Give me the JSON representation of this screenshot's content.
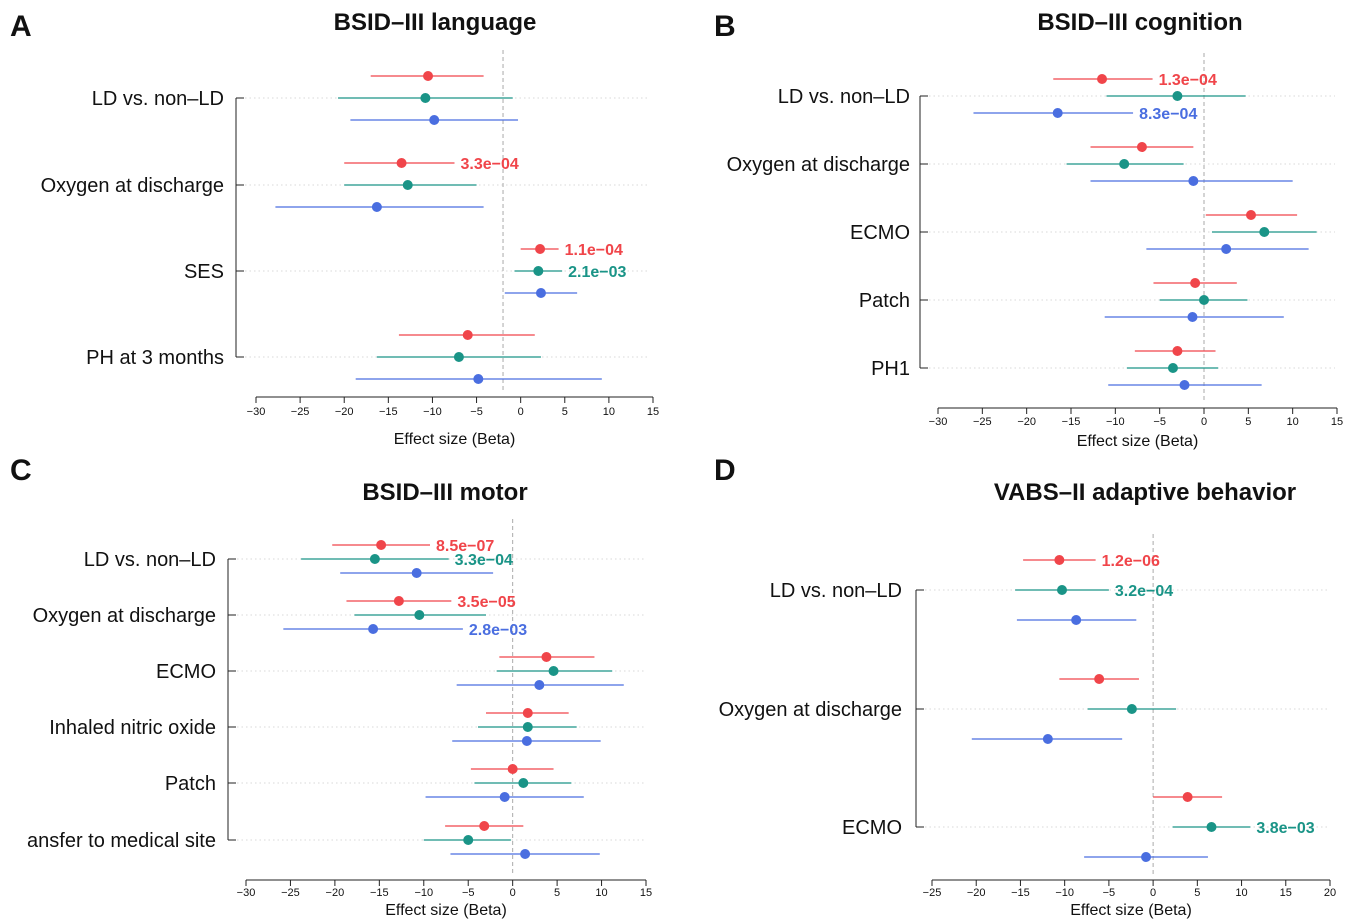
{
  "colors": {
    "s1": "#f0454a",
    "s2": "#1a9487",
    "s3": "#4a6ee0"
  },
  "chart_data": [
    {
      "panel": "A",
      "type": "forest",
      "title": "BSID–III language",
      "xlabel": "Effect size (Beta)",
      "xlim": [
        -30,
        15
      ],
      "xticks": [
        -30,
        -25,
        -20,
        -15,
        -10,
        -5,
        0,
        5,
        10,
        15
      ],
      "reference_line_x": -2,
      "grid": "dotted horizontal",
      "categories": [
        "LD vs. non–LD",
        "Oxygen at discharge",
        "SES",
        "PH at 3 months"
      ],
      "series": [
        {
          "color": "s1",
          "estimate": [
            -10.5,
            -13.5,
            2.2,
            -6.0
          ],
          "ci_low": [
            -17.0,
            -20.0,
            0.0,
            -13.8
          ],
          "ci_high": [
            -4.2,
            -7.5,
            4.3,
            1.6
          ]
        },
        {
          "color": "s2",
          "estimate": [
            -10.8,
            -12.8,
            2.0,
            -7.0
          ],
          "ci_low": [
            -20.7,
            -20.0,
            -0.7,
            -16.3
          ],
          "ci_high": [
            -0.9,
            -5.0,
            4.7,
            2.3
          ]
        },
        {
          "color": "s3",
          "estimate": [
            -9.8,
            -16.3,
            2.3,
            -4.8
          ],
          "ci_low": [
            -19.3,
            -27.8,
            -1.8,
            -18.7
          ],
          "ci_high": [
            -0.3,
            -4.2,
            6.4,
            9.2
          ]
        }
      ],
      "annotations": [
        {
          "text": "3.3e−04",
          "row": 1,
          "series": 0
        },
        {
          "text": "1.1e−04",
          "row": 2,
          "series": 0
        },
        {
          "text": "2.1e−03",
          "row": 2,
          "series": 1
        }
      ]
    },
    {
      "panel": "B",
      "type": "forest",
      "title": "BSID–III cognition",
      "xlabel": "Effect size (Beta)",
      "xlim": [
        -30,
        15
      ],
      "xticks": [
        -30,
        -25,
        -20,
        -15,
        -10,
        -5,
        0,
        5,
        10,
        15
      ],
      "reference_line_x": 0,
      "grid": "dotted horizontal",
      "categories": [
        "LD vs. non–LD",
        "Oxygen at discharge",
        "ECMO",
        "Patch",
        "PH1"
      ],
      "series": [
        {
          "color": "s1",
          "estimate": [
            -11.5,
            -7.0,
            5.3,
            -1.0,
            -3.0
          ],
          "ci_low": [
            -17.0,
            -12.8,
            0.2,
            -5.7,
            -7.8
          ],
          "ci_high": [
            -5.8,
            -1.2,
            10.5,
            3.7,
            1.3
          ]
        },
        {
          "color": "s2",
          "estimate": [
            -3.0,
            -9.0,
            6.8,
            0.0,
            -3.5
          ],
          "ci_low": [
            -11.0,
            -15.5,
            0.9,
            -5.0,
            -8.7
          ],
          "ci_high": [
            4.7,
            -2.3,
            12.7,
            4.9,
            1.6
          ]
        },
        {
          "color": "s3",
          "estimate": [
            -16.5,
            -1.2,
            2.5,
            -1.3,
            -2.2
          ],
          "ci_low": [
            -26.0,
            -12.8,
            -6.5,
            -11.2,
            -10.8
          ],
          "ci_high": [
            -8.0,
            10.0,
            11.8,
            9.0,
            6.5
          ]
        }
      ],
      "annotations": [
        {
          "text": "1.3e−04",
          "row": 0,
          "series": 0
        },
        {
          "text": "8.3e−04",
          "row": 0,
          "series": 2
        }
      ]
    },
    {
      "panel": "C",
      "type": "forest",
      "title": "BSID–III motor",
      "xlabel": "Effect size (Beta)",
      "xlim": [
        -30,
        15
      ],
      "xticks": [
        -30,
        -25,
        -20,
        -15,
        -10,
        -5,
        0,
        5,
        10,
        15
      ],
      "reference_line_x": 0,
      "grid": "dotted horizontal",
      "categories": [
        "LD vs. non–LD",
        "Oxygen at discharge",
        "ECMO",
        "Inhaled nitric oxide",
        "Patch",
        "ansfer to medical site"
      ],
      "series": [
        {
          "color": "s1",
          "estimate": [
            -14.8,
            -12.8,
            3.8,
            1.7,
            0.0,
            -3.2
          ],
          "ci_low": [
            -20.3,
            -18.7,
            -1.5,
            -3.0,
            -4.7,
            -7.6
          ],
          "ci_high": [
            -9.3,
            -6.9,
            9.2,
            6.3,
            4.6,
            1.2
          ]
        },
        {
          "color": "s2",
          "estimate": [
            -15.5,
            -10.5,
            4.6,
            1.7,
            1.2,
            -5.0
          ],
          "ci_low": [
            -23.8,
            -17.8,
            -1.8,
            -3.9,
            -4.3,
            -10.0
          ],
          "ci_high": [
            -7.2,
            -3.0,
            11.2,
            7.2,
            6.6,
            -0.2
          ]
        },
        {
          "color": "s3",
          "estimate": [
            -10.8,
            -15.7,
            3.0,
            1.6,
            -0.9,
            1.4
          ],
          "ci_low": [
            -19.4,
            -25.8,
            -6.3,
            -6.8,
            -9.8,
            -7.0
          ],
          "ci_high": [
            -2.2,
            -5.6,
            12.5,
            9.9,
            8.0,
            9.8
          ]
        }
      ],
      "annotations": [
        {
          "text": "8.5e−07",
          "row": 0,
          "series": 0
        },
        {
          "text": "3.3e−04",
          "row": 0,
          "series": 1
        },
        {
          "text": "3.5e−05",
          "row": 1,
          "series": 0
        },
        {
          "text": "2.8e−03",
          "row": 1,
          "series": 2
        }
      ]
    },
    {
      "panel": "D",
      "type": "forest",
      "title": "VABS–II adaptive behavior",
      "xlabel": "Effect size (Beta)",
      "xlim": [
        -25,
        20
      ],
      "xticks": [
        -25,
        -20,
        -15,
        -10,
        -5,
        0,
        5,
        10,
        15,
        20
      ],
      "reference_line_x": 0,
      "grid": "dotted horizontal",
      "categories": [
        "LD vs. non–LD",
        "Oxygen at discharge",
        "ECMO"
      ],
      "series": [
        {
          "color": "s1",
          "estimate": [
            -10.6,
            -6.1,
            3.9
          ],
          "ci_low": [
            -14.7,
            -10.6,
            0.0
          ],
          "ci_high": [
            -6.5,
            -1.6,
            7.8
          ]
        },
        {
          "color": "s2",
          "estimate": [
            -10.3,
            -2.4,
            6.6
          ],
          "ci_low": [
            -15.6,
            -7.4,
            2.2
          ],
          "ci_high": [
            -5.0,
            2.6,
            11.0
          ]
        },
        {
          "color": "s3",
          "estimate": [
            -8.7,
            -11.9,
            -0.8
          ],
          "ci_low": [
            -15.4,
            -20.5,
            -7.8
          ],
          "ci_high": [
            -1.9,
            -3.5,
            6.2
          ]
        }
      ],
      "annotations": [
        {
          "text": "1.2e−06",
          "row": 0,
          "series": 0
        },
        {
          "text": "3.2e−04",
          "row": 0,
          "series": 1
        },
        {
          "text": "3.8e−03",
          "row": 2,
          "series": 1
        }
      ]
    }
  ]
}
